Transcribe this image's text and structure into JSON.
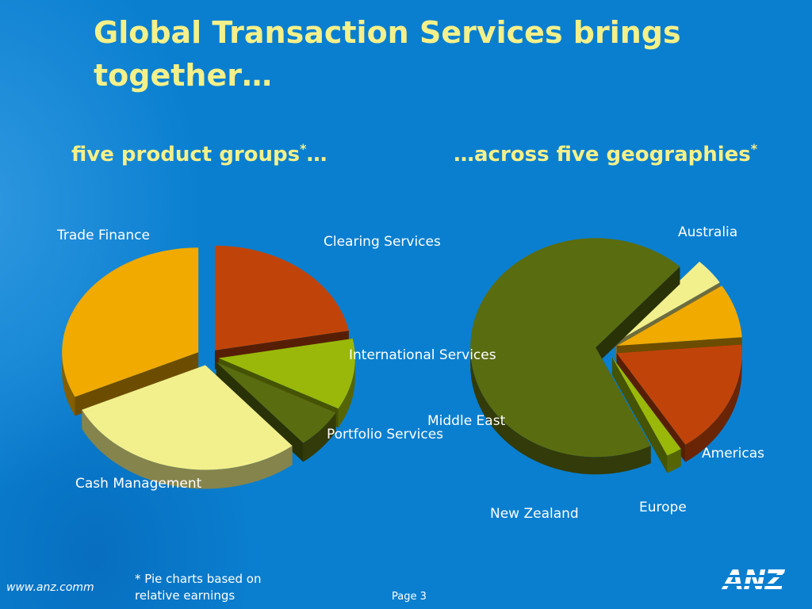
{
  "title": "Global Transaction Services brings together…",
  "subtitles": {
    "left": "five product groups",
    "left_star": "*",
    "left_tail": "…",
    "right_head": "…across five geographies",
    "right_star": "*"
  },
  "chart_data": [
    {
      "type": "pie",
      "title": "",
      "slices": [
        {
          "label": "Clearing Services",
          "value": 22,
          "color": "#c0440a"
        },
        {
          "label": "International Services",
          "value": 11,
          "color": "#9ab80a"
        },
        {
          "label": "Portfolio Services",
          "value": 6,
          "color": "#5a6c10"
        },
        {
          "label": "Cash Management",
          "value": 29,
          "color": "#f2f08c"
        },
        {
          "label": "Trade Finance",
          "value": 32,
          "color": "#f0aa00"
        }
      ]
    },
    {
      "type": "pie",
      "title": "",
      "slices": [
        {
          "label": "Australia",
          "value": 69,
          "color": "#5a6c10"
        },
        {
          "label": "Americas",
          "value": 4,
          "color": "#f2f08c"
        },
        {
          "label": "Europe",
          "value": 8,
          "color": "#f0aa00"
        },
        {
          "label": "New Zealand",
          "value": 17,
          "color": "#c0440a"
        },
        {
          "label": "Middle East",
          "value": 2,
          "color": "#9ab80a"
        }
      ]
    }
  ],
  "footnote": {
    "line1": "* Pie charts based on",
    "line2": "relative earnings"
  },
  "footer": {
    "url": "www.anz.comm",
    "page": "Page 3",
    "logo": "ANZ"
  }
}
